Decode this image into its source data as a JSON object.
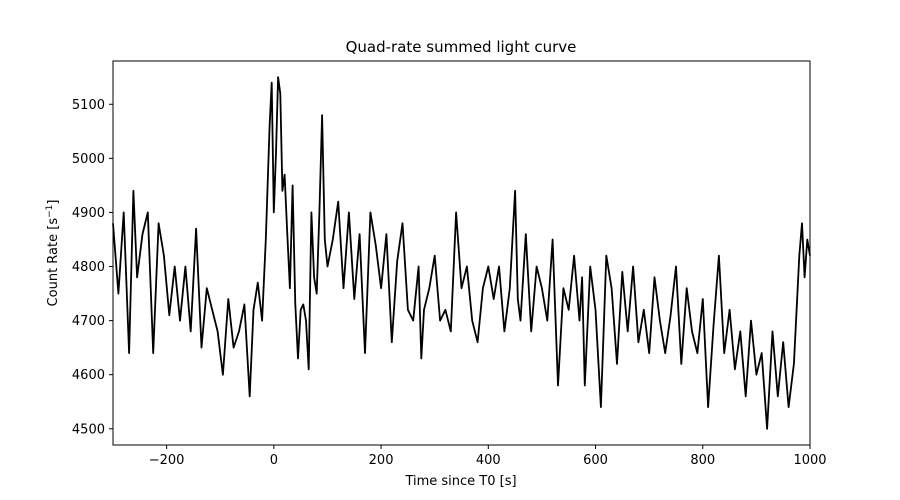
{
  "chart_data": {
    "type": "line",
    "title": "Quad-rate summed light curve",
    "xlabel": "Time since T0 [s]",
    "ylabel_main": "Count Rate [s",
    "ylabel_sup": "−1",
    "ylabel_end": "]",
    "xlim": [
      -300,
      1000
    ],
    "ylim": [
      4470,
      5180
    ],
    "xticks": [
      -200,
      0,
      200,
      400,
      600,
      800,
      1000
    ],
    "xtick_labels": [
      "−200",
      "0",
      "200",
      "400",
      "600",
      "800",
      "1000"
    ],
    "yticks": [
      4500,
      4600,
      4700,
      4800,
      4900,
      5000,
      5100
    ],
    "ytick_labels": [
      "4500",
      "4600",
      "4700",
      "4800",
      "4900",
      "5000",
      "5100"
    ],
    "grid": false,
    "series": [
      {
        "color": "#000000",
        "x": [
          -300,
          -290,
          -280,
          -270,
          -262,
          -255,
          -245,
          -235,
          -225,
          -215,
          -205,
          -195,
          -185,
          -175,
          -165,
          -155,
          -145,
          -135,
          -125,
          -115,
          -105,
          -95,
          -85,
          -75,
          -65,
          -55,
          -45,
          -38,
          -30,
          -22,
          -15,
          -8,
          -4,
          0,
          4,
          8,
          12,
          16,
          20,
          25,
          30,
          35,
          40,
          45,
          50,
          55,
          60,
          65,
          70,
          75,
          80,
          85,
          90,
          95,
          100,
          110,
          120,
          130,
          140,
          150,
          160,
          170,
          180,
          190,
          200,
          210,
          220,
          230,
          240,
          250,
          260,
          270,
          275,
          280,
          290,
          300,
          310,
          320,
          330,
          340,
          350,
          360,
          370,
          380,
          390,
          400,
          410,
          420,
          430,
          440,
          450,
          455,
          460,
          470,
          480,
          490,
          500,
          510,
          520,
          530,
          540,
          550,
          560,
          570,
          575,
          580,
          590,
          600,
          610,
          620,
          630,
          640,
          650,
          660,
          670,
          680,
          690,
          700,
          710,
          720,
          730,
          740,
          750,
          760,
          770,
          780,
          790,
          800,
          810,
          820,
          830,
          840,
          850,
          860,
          870,
          880,
          890,
          900,
          910,
          920,
          930,
          940,
          950,
          960,
          970,
          980,
          985,
          990,
          995,
          1000
        ],
        "y": [
          4880,
          4750,
          4900,
          4640,
          4940,
          4780,
          4860,
          4900,
          4640,
          4880,
          4820,
          4710,
          4800,
          4700,
          4800,
          4680,
          4870,
          4650,
          4760,
          4720,
          4680,
          4600,
          4740,
          4650,
          4680,
          4730,
          4560,
          4720,
          4770,
          4700,
          4850,
          5060,
          5140,
          4900,
          5010,
          5150,
          5120,
          4940,
          4970,
          4860,
          4760,
          4950,
          4730,
          4630,
          4720,
          4730,
          4700,
          4610,
          4900,
          4780,
          4750,
          4900,
          5080,
          4850,
          4800,
          4850,
          4920,
          4760,
          4900,
          4740,
          4860,
          4640,
          4900,
          4840,
          4760,
          4860,
          4660,
          4810,
          4880,
          4720,
          4700,
          4800,
          4630,
          4720,
          4760,
          4820,
          4700,
          4720,
          4680,
          4900,
          4760,
          4800,
          4700,
          4660,
          4760,
          4800,
          4740,
          4800,
          4680,
          4760,
          4940,
          4740,
          4700,
          4860,
          4680,
          4800,
          4760,
          4700,
          4850,
          4580,
          4760,
          4720,
          4820,
          4700,
          4780,
          4580,
          4800,
          4720,
          4540,
          4820,
          4760,
          4620,
          4790,
          4680,
          4800,
          4660,
          4720,
          4640,
          4780,
          4700,
          4640,
          4710,
          4800,
          4620,
          4760,
          4680,
          4640,
          4740,
          4540,
          4690,
          4820,
          4640,
          4720,
          4610,
          4680,
          4560,
          4700,
          4600,
          4640,
          4500,
          4680,
          4560,
          4660,
          4540,
          4620,
          4820,
          4880,
          4780,
          4850,
          4820
        ]
      }
    ]
  }
}
